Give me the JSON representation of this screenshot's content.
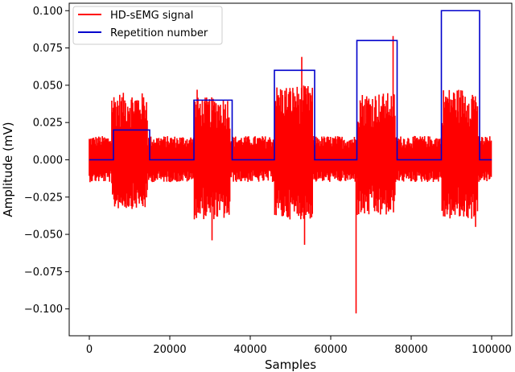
{
  "chart_data": {
    "type": "line",
    "xlabel": "Samples",
    "ylabel": "Amplitude (mV)",
    "xlim": [
      -5000,
      105000
    ],
    "ylim": [
      -0.118,
      0.105
    ],
    "x_ticks": [
      0,
      20000,
      40000,
      60000,
      80000,
      100000
    ],
    "x_tick_labels": [
      "0",
      "20000",
      "40000",
      "60000",
      "80000",
      "100000"
    ],
    "y_ticks": [
      0.1,
      0.075,
      0.05,
      0.025,
      0.0,
      -0.025,
      -0.05,
      -0.075,
      -0.1
    ],
    "y_tick_labels": [
      "0.100",
      "0.075",
      "0.050",
      "0.025",
      "0.000",
      "−0.025",
      "−0.050",
      "−0.075",
      "−0.100"
    ],
    "grid": false,
    "legend_position": "top-left",
    "colors": {
      "signal": "#ff0000",
      "repetition": "#0000cc"
    },
    "series": [
      {
        "name": "HD-sEMG signal",
        "kind": "noise-envelope",
        "x_range": [
          0,
          100000
        ],
        "baseline_envelope": [
          -0.015,
          0.016
        ],
        "bursts": [
          {
            "x": [
              5500,
              14500
            ],
            "envelope": [
              -0.033,
              0.045
            ],
            "peaks": []
          },
          {
            "x": [
              26000,
              35000
            ],
            "envelope": [
              -0.04,
              0.042
            ],
            "peaks": [
              [
                30500,
                -0.054
              ],
              [
                26800,
                0.047
              ]
            ]
          },
          {
            "x": [
              46000,
              55500
            ],
            "envelope": [
              -0.04,
              0.05
            ],
            "peaks": [
              [
                52800,
                0.069
              ],
              [
                53500,
                -0.057
              ]
            ]
          },
          {
            "x": [
              66500,
              76000
            ],
            "envelope": [
              -0.038,
              0.045
            ],
            "peaks": [
              [
                66300,
                -0.103
              ],
              [
                75500,
                0.083
              ]
            ]
          },
          {
            "x": [
              87500,
              96500
            ],
            "envelope": [
              -0.04,
              0.048
            ],
            "peaks": [
              [
                96000,
                -0.045
              ]
            ]
          }
        ]
      },
      {
        "name": "Repetition number",
        "kind": "step",
        "points": [
          [
            0,
            0.0
          ],
          [
            6000,
            0.0
          ],
          [
            6000,
            0.02
          ],
          [
            15000,
            0.02
          ],
          [
            15000,
            0.0
          ],
          [
            26000,
            0.0
          ],
          [
            26000,
            0.04
          ],
          [
            35500,
            0.04
          ],
          [
            35500,
            0.0
          ],
          [
            46000,
            0.0
          ],
          [
            46000,
            0.06
          ],
          [
            56000,
            0.06
          ],
          [
            56000,
            0.0
          ],
          [
            66500,
            0.0
          ],
          [
            66500,
            0.08
          ],
          [
            76500,
            0.08
          ],
          [
            76500,
            0.0
          ],
          [
            87500,
            0.0
          ],
          [
            87500,
            0.1
          ],
          [
            97000,
            0.1
          ],
          [
            97000,
            0.0
          ],
          [
            100000,
            0.0
          ]
        ]
      }
    ]
  }
}
